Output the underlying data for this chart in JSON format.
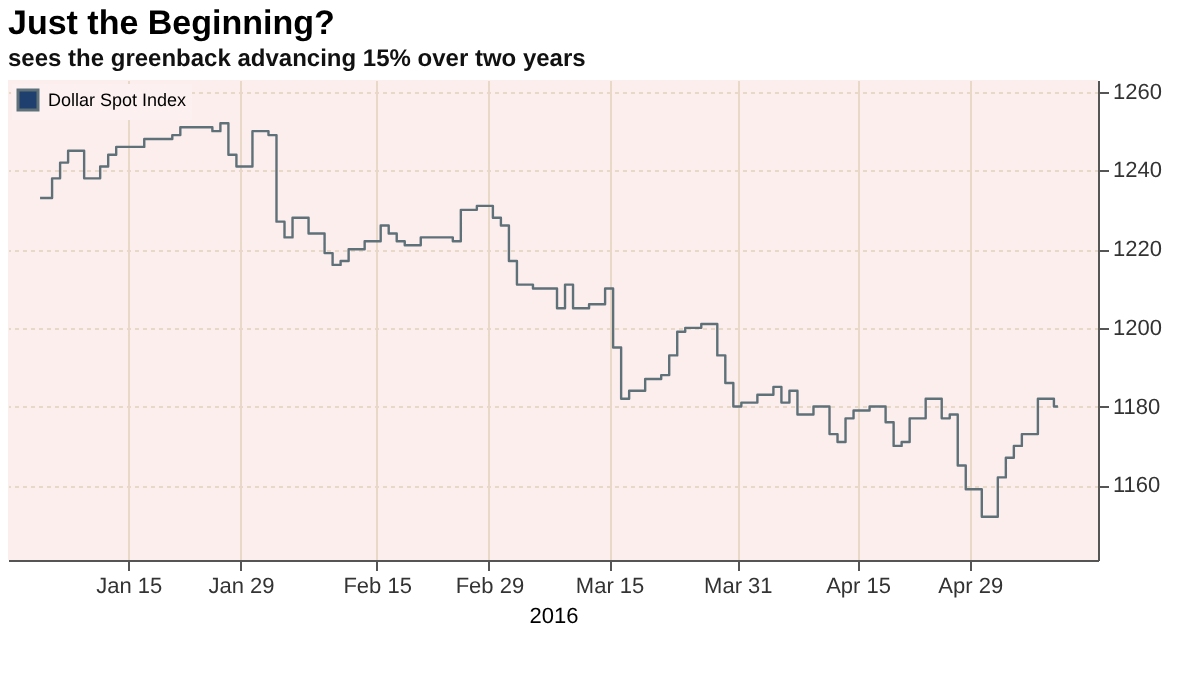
{
  "chart_data": {
    "type": "step",
    "title": "Just the Beginning?",
    "subtitle": "sees the greenback advancing 15% over two years",
    "xlabel": "2016",
    "x": [
      "2016-01-04",
      "2016-01-05",
      "2016-01-06",
      "2016-01-07",
      "2016-01-08",
      "2016-01-11",
      "2016-01-12",
      "2016-01-13",
      "2016-01-14",
      "2016-01-15",
      "2016-01-19",
      "2016-01-20",
      "2016-01-21",
      "2016-01-22",
      "2016-01-25",
      "2016-01-26",
      "2016-01-27",
      "2016-01-28",
      "2016-01-29",
      "2016-02-01",
      "2016-02-02",
      "2016-02-03",
      "2016-02-04",
      "2016-02-05",
      "2016-02-08",
      "2016-02-09",
      "2016-02-10",
      "2016-02-11",
      "2016-02-12",
      "2016-02-15",
      "2016-02-16",
      "2016-02-17",
      "2016-02-18",
      "2016-02-19",
      "2016-02-22",
      "2016-02-23",
      "2016-02-24",
      "2016-02-25",
      "2016-02-26",
      "2016-02-29",
      "2016-03-01",
      "2016-03-02",
      "2016-03-03",
      "2016-03-04",
      "2016-03-07",
      "2016-03-08",
      "2016-03-09",
      "2016-03-10",
      "2016-03-11",
      "2016-03-14",
      "2016-03-15",
      "2016-03-16",
      "2016-03-17",
      "2016-03-18",
      "2016-03-21",
      "2016-03-22",
      "2016-03-23",
      "2016-03-24",
      "2016-03-25",
      "2016-03-28",
      "2016-03-29",
      "2016-03-30",
      "2016-03-31",
      "2016-04-01",
      "2016-04-04",
      "2016-04-05",
      "2016-04-06",
      "2016-04-07",
      "2016-04-08",
      "2016-04-11",
      "2016-04-12",
      "2016-04-13",
      "2016-04-14",
      "2016-04-15",
      "2016-04-18",
      "2016-04-19",
      "2016-04-20",
      "2016-04-21",
      "2016-04-22",
      "2016-04-25",
      "2016-04-26",
      "2016-04-27",
      "2016-04-28",
      "2016-04-29",
      "2016-05-02",
      "2016-05-03",
      "2016-05-04",
      "2016-05-05",
      "2016-05-06",
      "2016-05-09",
      "2016-05-10"
    ],
    "series": [
      {
        "name": "Dollar Spot Index",
        "color": "#5e7078",
        "values": [
          1233,
          1233,
          1238,
          1242,
          1245,
          1238,
          1241,
          1244,
          1246,
          1246,
          1248,
          1248,
          1249,
          1251,
          1251,
          1250,
          1252,
          1244,
          1241,
          1250,
          1249,
          1227,
          1223,
          1228,
          1224,
          1219,
          1216,
          1217,
          1220,
          1222,
          1226,
          1224,
          1222,
          1221,
          1223,
          1223,
          1223,
          1222,
          1230,
          1231,
          1228,
          1226,
          1217,
          1211,
          1210,
          1210,
          1205,
          1211,
          1205,
          1206,
          1210,
          1195,
          1182,
          1184,
          1187,
          1188,
          1193,
          1199,
          1200,
          1201,
          1193,
          1186,
          1180,
          1181,
          1183,
          1185,
          1181,
          1184,
          1178,
          1180,
          1173,
          1171,
          1177,
          1179,
          1180,
          1176,
          1170,
          1171,
          1177,
          1182,
          1177,
          1178,
          1165,
          1159,
          1152,
          1162,
          1167,
          1170,
          1173,
          1182,
          1180
        ]
      }
    ],
    "xlim": [
      "2015-12-31",
      "2016-05-15"
    ],
    "xticks": [
      {
        "value": "2016-01-15",
        "label": "Jan 15"
      },
      {
        "value": "2016-01-29",
        "label": "Jan 29"
      },
      {
        "value": "2016-02-15",
        "label": "Feb 15"
      },
      {
        "value": "2016-02-29",
        "label": "Feb 29"
      },
      {
        "value": "2016-03-15",
        "label": "Mar 15"
      },
      {
        "value": "2016-03-31",
        "label": "Mar 31"
      },
      {
        "value": "2016-04-15",
        "label": "Apr 15"
      },
      {
        "value": "2016-04-29",
        "label": "Apr 29"
      }
    ],
    "ylim": [
      1141,
      1263
    ],
    "yticks": [
      1160,
      1180,
      1200,
      1220,
      1240,
      1260
    ],
    "grid": true,
    "legend": "top left",
    "marker": "none",
    "line_style": "solid"
  }
}
